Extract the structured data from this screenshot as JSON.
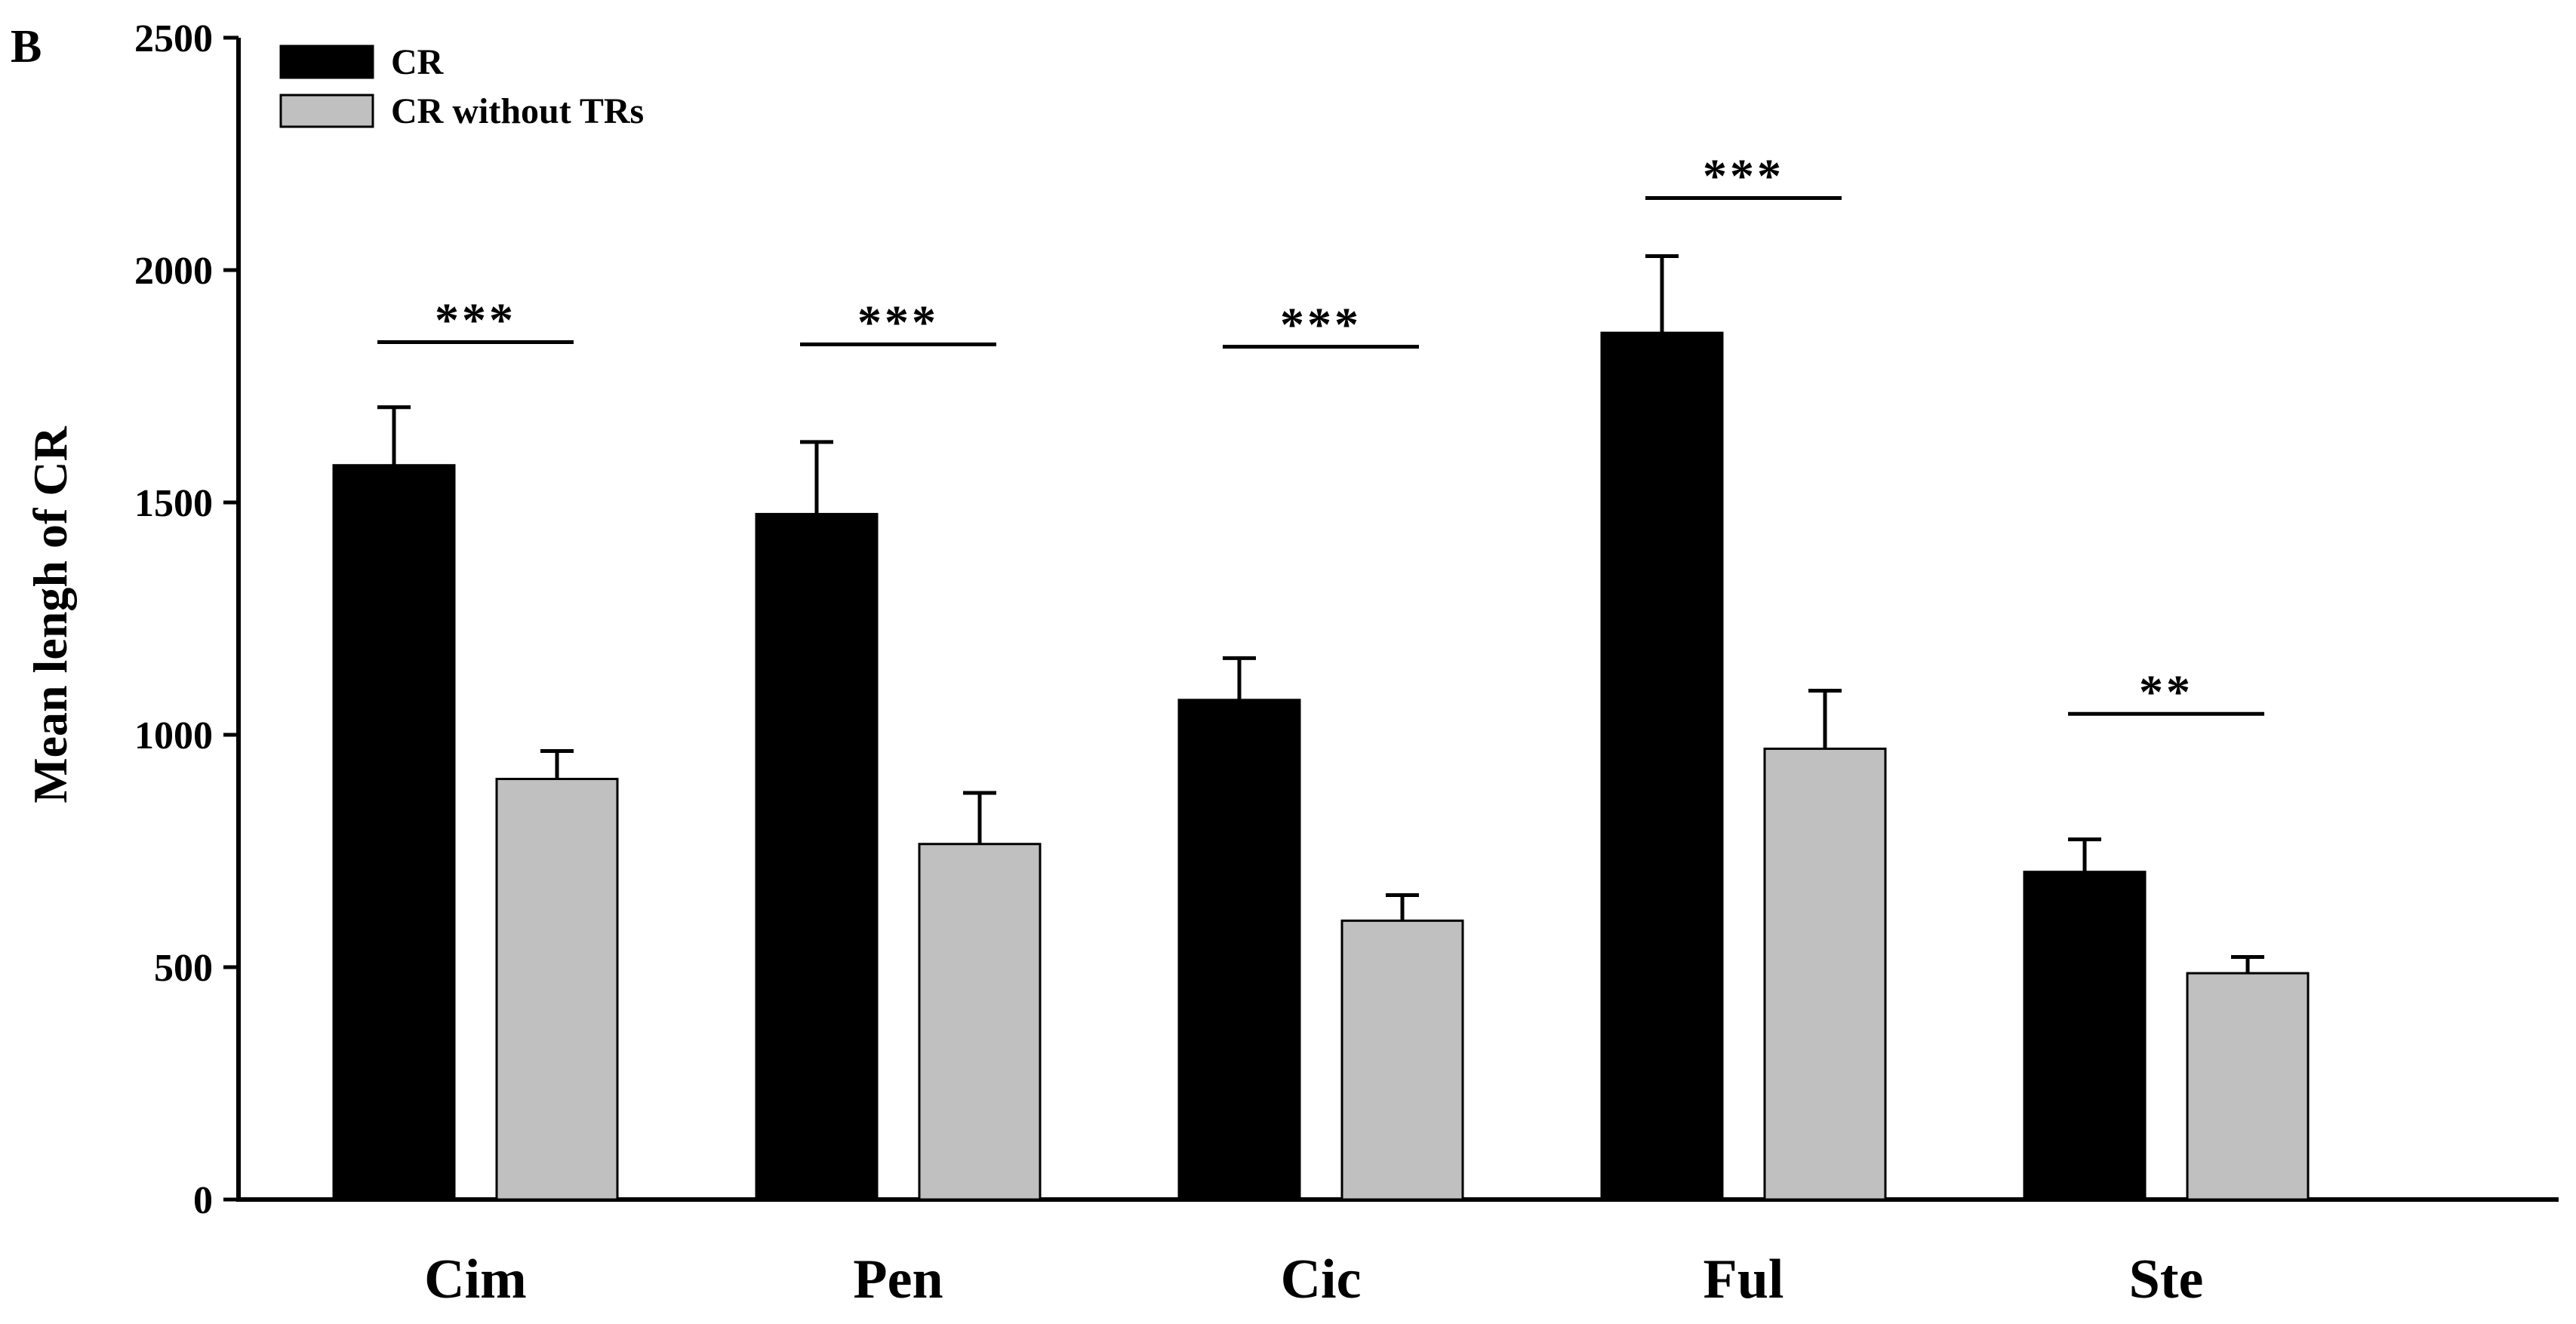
{
  "panel_label": "B",
  "chart_data": {
    "type": "bar",
    "title": "",
    "xlabel": "",
    "ylabel": "Mean lengh of CR",
    "ylim": [
      0,
      2500
    ],
    "yticks": [
      0,
      500,
      1000,
      1500,
      2000,
      2500
    ],
    "categories": [
      "Cim",
      "Pen",
      "Cic",
      "Ful",
      "Ste"
    ],
    "series": [
      {
        "name": "CR",
        "color": "#000000",
        "values": [
          1580,
          1475,
          1075,
          1865,
          705
        ],
        "errors": [
          125,
          155,
          90,
          165,
          70
        ]
      },
      {
        "name": "CR without TRs",
        "color": "#c0c0c0",
        "values": [
          905,
          765,
          600,
          970,
          487
        ],
        "errors": [
          60,
          110,
          55,
          125,
          35
        ]
      }
    ],
    "significance": [
      "***",
      "***",
      "***",
      "***",
      "**"
    ],
    "significance_line_values": [
      1845,
      1840,
      1835,
      2155,
      1045
    ],
    "legend_position": "top-left",
    "grid": false
  }
}
